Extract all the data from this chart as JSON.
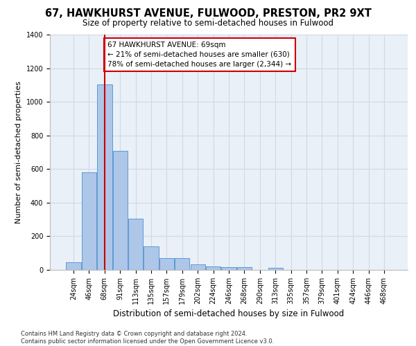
{
  "title": "67, HAWKHURST AVENUE, FULWOOD, PRESTON, PR2 9XT",
  "subtitle": "Size of property relative to semi-detached houses in Fulwood",
  "xlabel": "Distribution of semi-detached houses by size in Fulwood",
  "ylabel": "Number of semi-detached properties",
  "footer_line1": "Contains HM Land Registry data © Crown copyright and database right 2024.",
  "footer_line2": "Contains public sector information licensed under the Open Government Licence v3.0.",
  "bar_labels": [
    "24sqm",
    "46sqm",
    "68sqm",
    "91sqm",
    "113sqm",
    "135sqm",
    "157sqm",
    "179sqm",
    "202sqm",
    "224sqm",
    "246sqm",
    "268sqm",
    "290sqm",
    "313sqm",
    "335sqm",
    "357sqm",
    "379sqm",
    "401sqm",
    "424sqm",
    "446sqm",
    "468sqm"
  ],
  "bar_values": [
    45,
    580,
    1105,
    710,
    305,
    140,
    68,
    68,
    32,
    22,
    18,
    18,
    0,
    12,
    0,
    0,
    0,
    0,
    0,
    0,
    0
  ],
  "bar_color": "#aec6e8",
  "bar_edge_color": "#5b9bd5",
  "annotation_line1": "67 HAWKHURST AVENUE: 69sqm",
  "annotation_line2": "← 21% of semi-detached houses are smaller (630)",
  "annotation_line3": "78% of semi-detached houses are larger (2,344) →",
  "annotation_box_color": "#ffffff",
  "annotation_box_edge": "#cc0000",
  "vline_color": "#cc0000",
  "vline_x_index": 2,
  "ylim": [
    0,
    1400
  ],
  "yticks": [
    0,
    200,
    400,
    600,
    800,
    1000,
    1200,
    1400
  ],
  "grid_color": "#d0d8e8",
  "bg_color": "#eaf0f8",
  "title_fontsize": 10.5,
  "subtitle_fontsize": 8.5,
  "xlabel_fontsize": 8.5,
  "ylabel_fontsize": 8.0,
  "tick_fontsize": 7.0,
  "annotation_fontsize": 7.5,
  "footer_fontsize": 6.0
}
